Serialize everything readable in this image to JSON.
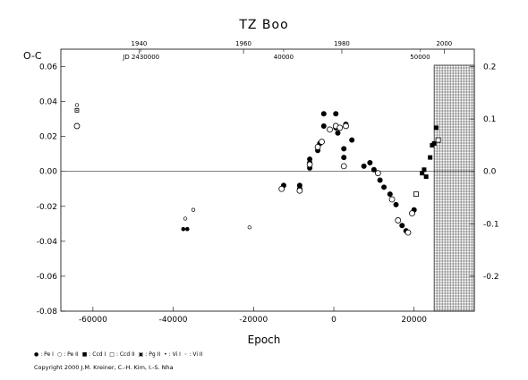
{
  "chart_data": {
    "type": "scatter",
    "title": "TZ Boo",
    "xlabel": "Epoch",
    "ylabel": "O-C",
    "xlim": [
      -68000,
      35000
    ],
    "ylim": [
      -0.08,
      0.07
    ],
    "x_ticks": [
      "-60000",
      "-40000",
      "-20000",
      "0",
      "20000"
    ],
    "x_tick_values": [
      -60000,
      -40000,
      -20000,
      0,
      20000
    ],
    "y_ticks": [
      "-0.08",
      "-0.06",
      "-0.04",
      "-0.02",
      "0.00",
      "0.02",
      "0.04",
      "0.06"
    ],
    "y_tick_values": [
      -0.08,
      -0.06,
      -0.04,
      -0.02,
      0.0,
      0.02,
      0.04,
      0.06
    ],
    "right_ticks": [
      "0.2",
      "0.1",
      "0.0",
      "-0.1",
      "-0.2"
    ],
    "right_tick_values": [
      0.06,
      0.03,
      0.0,
      -0.03,
      -0.06
    ],
    "top_year_ticks": [
      "1940",
      "1960",
      "1980",
      "2000"
    ],
    "top_year_epochs": [
      -48500,
      -22500,
      2000,
      27500
    ],
    "top_jd_ticks": [
      "JD 2430000",
      "40000",
      "50000"
    ],
    "top_jd_epochs": [
      -48000,
      -12500,
      21500
    ],
    "grid_region_start": 25000,
    "series": [
      {
        "name": "Pe I",
        "marker": "filled-circle",
        "x": [
          -12500,
          -8500,
          -8500,
          -6000,
          -6000,
          -6000,
          -4000,
          -3500,
          -2500,
          -2500,
          500,
          500,
          1000,
          2500,
          2500,
          3000,
          4500,
          7500,
          9000,
          10000,
          11500,
          12500,
          14000,
          15500,
          17000,
          18000,
          19500,
          20000
        ],
        "y": [
          -0.008,
          -0.008,
          -0.01,
          0.005,
          0.002,
          0.007,
          0.012,
          0.016,
          0.026,
          0.033,
          0.033,
          0.025,
          0.022,
          0.013,
          0.008,
          0.027,
          0.018,
          0.003,
          0.005,
          0.001,
          -0.005,
          -0.009,
          -0.013,
          -0.019,
          -0.031,
          -0.034,
          -0.024,
          -0.022
        ]
      },
      {
        "name": "Pe II",
        "marker": "open-circle",
        "x": [
          -64000,
          -13000,
          -8500,
          -6000,
          -4000,
          -3000,
          -1000,
          500,
          1500,
          2500,
          3000,
          11000,
          14500,
          16000,
          18500,
          19500
        ],
        "y": [
          0.026,
          -0.01,
          -0.011,
          0.004,
          0.014,
          0.017,
          0.024,
          0.026,
          0.025,
          0.003,
          0.026,
          -0.001,
          -0.016,
          -0.028,
          -0.035,
          -0.024
        ]
      },
      {
        "name": "Ccd I",
        "marker": "filled-square",
        "x": [
          22000,
          22500,
          23000,
          24000,
          24500,
          25000,
          25500
        ],
        "y": [
          -0.001,
          0.001,
          -0.003,
          0.008,
          0.015,
          0.016,
          0.025
        ]
      },
      {
        "name": "Ccd II",
        "marker": "open-square",
        "x": [
          20500,
          26000
        ],
        "y": [
          -0.013,
          0.018
        ]
      },
      {
        "name": "Pg II",
        "marker": "dotted-square",
        "x": [
          -64000
        ],
        "y": [
          0.035
        ]
      },
      {
        "name": "Vi I",
        "marker": "small-filled-circle",
        "x": [
          -37500,
          -36500
        ],
        "y": [
          -0.033,
          -0.033
        ]
      },
      {
        "name": "Vi II",
        "marker": "small-open-circle",
        "x": [
          -64000,
          -37000,
          -35000,
          -21000
        ],
        "y": [
          0.038,
          -0.027,
          -0.022,
          -0.032
        ]
      }
    ],
    "legend_position": "bottom",
    "grid": false
  },
  "legend": [
    {
      "symbol": "●",
      "label": ": Pe I"
    },
    {
      "symbol": "○",
      "label": ": Pe II"
    },
    {
      "symbol": "■",
      "label": ": Ccd I"
    },
    {
      "symbol": "□",
      "label": ": Ccd II"
    },
    {
      "symbol": "▣",
      "label": ": Pg II"
    },
    {
      "symbol": "•",
      "label": ": Vi I"
    },
    {
      "symbol": "◦",
      "label": ": Vi II"
    }
  ],
  "copyright": "Copyright 2000 J.M. Kreiner, C.-H. Kim, I.-S. Nha"
}
